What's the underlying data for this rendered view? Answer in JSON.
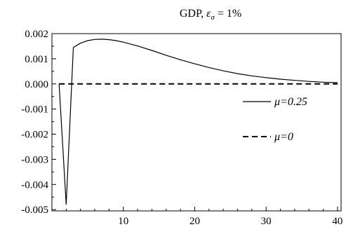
{
  "chart_data": {
    "type": "line",
    "title": "GDP, εσ = 1%",
    "title_parts": {
      "prefix": "GDP, ",
      "epsilon": "ε",
      "sigma": "σ",
      "suffix": " = 1%"
    },
    "xlabel": "",
    "ylabel": "",
    "xlim": [
      0,
      40.5
    ],
    "ylim": [
      -0.00505,
      0.002
    ],
    "x_ticks": [
      10,
      20,
      30,
      40
    ],
    "x_tick_labels": [
      "10",
      "20",
      "30",
      "40"
    ],
    "y_ticks": [
      0.002,
      0.001,
      0.0,
      -0.001,
      -0.002,
      -0.003,
      -0.004,
      -0.005
    ],
    "y_tick_labels": [
      "0.002",
      "0.001",
      "0.000",
      "-0.001",
      "-0.002",
      "-0.003",
      "-0.004",
      "-0.005"
    ],
    "grid": false,
    "legend_position": "right",
    "series": [
      {
        "name": "μ=0.25",
        "style": "solid",
        "x": [
          1,
          2,
          3,
          4,
          5,
          6,
          7,
          8,
          9,
          10,
          12,
          14,
          16,
          18,
          20,
          22,
          24,
          26,
          28,
          30,
          32,
          34,
          36,
          38,
          40
        ],
        "y": [
          0.0,
          -0.0048,
          0.00145,
          0.00162,
          0.00172,
          0.00177,
          0.00178,
          0.00176,
          0.00172,
          0.00166,
          0.00151,
          0.00133,
          0.00114,
          0.00096,
          0.0008,
          0.00065,
          0.00052,
          0.00041,
          0.00032,
          0.00025,
          0.00019,
          0.00014,
          0.0001,
          7e-05,
          5e-05
        ]
      },
      {
        "name": "μ=0",
        "style": "dashed",
        "x": [
          1,
          40
        ],
        "y": [
          0.0,
          0.0
        ]
      }
    ],
    "legend": [
      {
        "label": "μ=0.25",
        "style": "solid"
      },
      {
        "label": "μ=0",
        "style": "dashed"
      }
    ]
  }
}
